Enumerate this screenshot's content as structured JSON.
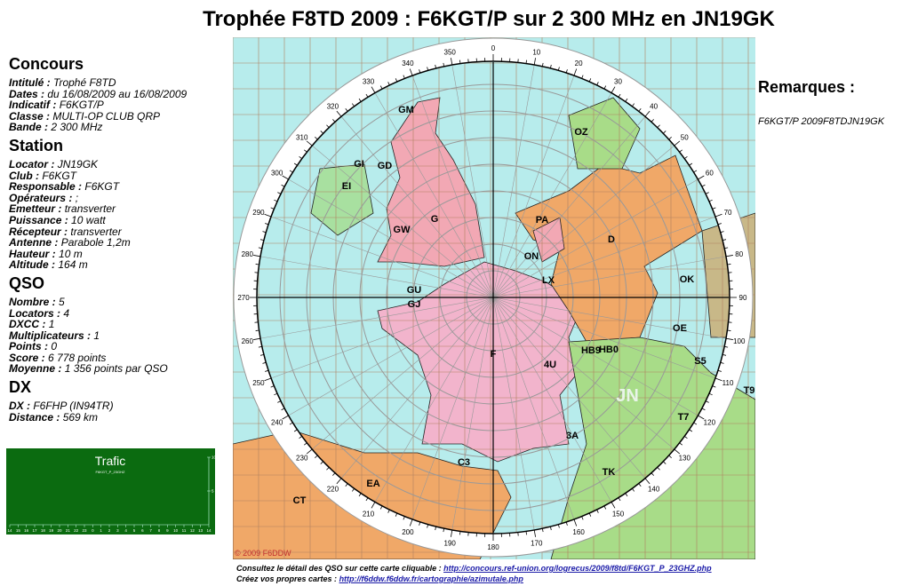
{
  "title": "Trophée F8TD 2009 : F6KGT/P sur 2 300 MHz en JN19GK",
  "sections": [
    {
      "heading": "Concours",
      "items": [
        {
          "key": "Intitulé :",
          "value": "Trophé F8TD"
        },
        {
          "key": "Dates :",
          "value": "du 16/08/2009 au 16/08/2009"
        },
        {
          "key": "Indicatif :",
          "value": "F6KGT/P"
        },
        {
          "key": "Classe :",
          "value": "MULTI-OP CLUB QRP"
        },
        {
          "key": "Bande :",
          "value": "2 300 MHz"
        }
      ]
    },
    {
      "heading": "Station",
      "items": [
        {
          "key": "Locator :",
          "value": "JN19GK"
        },
        {
          "key": "Club :",
          "value": "F6KGT"
        },
        {
          "key": "Responsable :",
          "value": "F6KGT"
        },
        {
          "key": "Opérateurs :",
          "value": ";"
        },
        {
          "key": "Emetteur :",
          "value": "transverter"
        },
        {
          "key": "Puissance :",
          "value": "10 watt"
        },
        {
          "key": "Récepteur :",
          "value": "transverter"
        },
        {
          "key": "Antenne :",
          "value": "Parabole 1,2m"
        },
        {
          "key": "Hauteur :",
          "value": "10 m"
        },
        {
          "key": "Altitude :",
          "value": "164 m"
        }
      ]
    },
    {
      "heading": "QSO",
      "items": [
        {
          "key": "Nombre :",
          "value": "5"
        },
        {
          "key": "Locators :",
          "value": "4"
        },
        {
          "key": "DXCC :",
          "value": "1"
        },
        {
          "key": "Multiplicateurs :",
          "value": "1"
        },
        {
          "key": "Points :",
          "value": "0"
        },
        {
          "key": "Score :",
          "value": "6 778 points"
        },
        {
          "key": "Moyenne :",
          "value": "1 356 points par QSO"
        }
      ]
    },
    {
      "heading": "DX",
      "items": [
        {
          "key": "DX :",
          "value": "F6FHP (IN94TR)"
        },
        {
          "key": "Distance :",
          "value": "569 km"
        }
      ]
    }
  ],
  "trafic": {
    "title": "Trafic",
    "subtitle": "F6KGT_P_23GHZ",
    "hours": [
      14,
      15,
      16,
      17,
      18,
      19,
      20,
      21,
      22,
      23,
      0,
      1,
      2,
      3,
      4,
      5,
      6,
      7,
      8,
      9,
      10,
      11,
      12,
      13,
      14
    ],
    "yticks": [
      10,
      5
    ]
  },
  "map": {
    "bearings": [
      0,
      10,
      20,
      30,
      40,
      50,
      60,
      70,
      80,
      90,
      100,
      110,
      120,
      130,
      140,
      150,
      160,
      170,
      180,
      190,
      200,
      210,
      220,
      230,
      240,
      250,
      260,
      270,
      280,
      290,
      300,
      310,
      320,
      330,
      340,
      350
    ],
    "prefixes": [
      "GM",
      "GI",
      "GD",
      "EI",
      "G",
      "GW",
      "PA",
      "ON",
      "LX",
      "D",
      "OZ",
      "OK",
      "OE",
      "HB9",
      "HB0",
      "F",
      "4U",
      "GU",
      "GJ",
      "JN",
      "S5",
      "T9",
      "T7",
      "3A",
      "TK",
      "C3",
      "EA",
      "CT"
    ],
    "copyright": "© 2009 F6DDW"
  },
  "remarks": {
    "heading": "Remarques :",
    "text": "F6KGT/P 2009F8TDJN19GK"
  },
  "footer": [
    {
      "text": "Consultez le détail des QSO sur cette carte cliquable : ",
      "link": "http://concours.ref-union.org/logrecus/2009/f8td/F6KGT_P_23GHZ.php"
    },
    {
      "text": "Créez vos propres cartes : ",
      "link": "http://f6ddw.f6ddw.fr/cartographie/azimutale.php"
    }
  ]
}
